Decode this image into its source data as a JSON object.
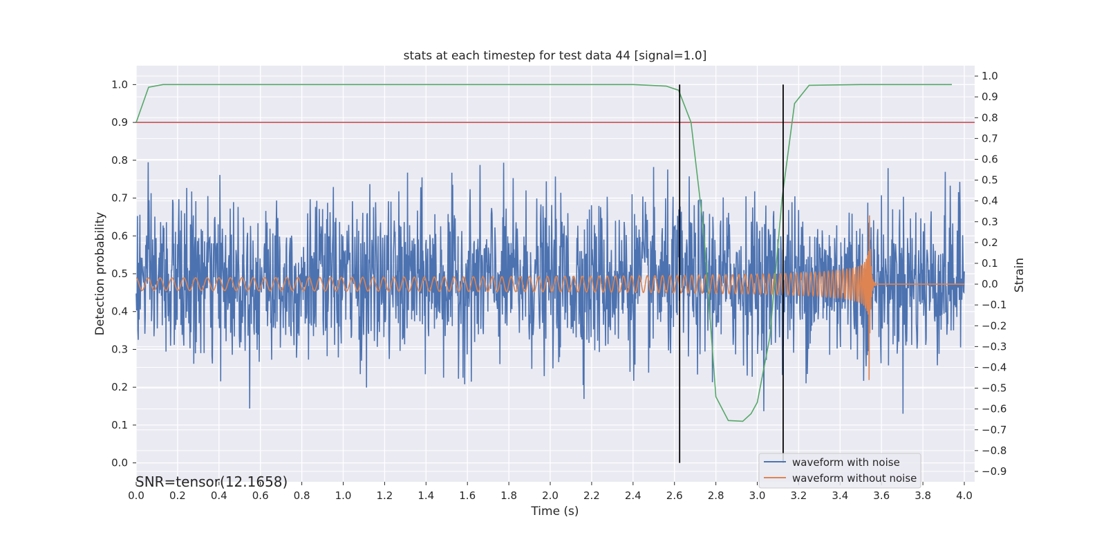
{
  "chart_data": {
    "type": "line",
    "title": "stats at each timestep for test data 44 [signal=1.0]",
    "xlabel": "Time (s)",
    "ylabel_left": "Detection probability",
    "ylabel_right": "Strain",
    "xlim": [
      0.0,
      4.05
    ],
    "ylim_left": [
      -0.05,
      1.05
    ],
    "ylim_right": [
      -0.95,
      1.05
    ],
    "x_ticks": [
      "0.0",
      "0.2",
      "0.4",
      "0.6",
      "0.8",
      "1.0",
      "1.2",
      "1.4",
      "1.6",
      "1.8",
      "2.0",
      "2.2",
      "2.4",
      "2.6",
      "2.8",
      "3.0",
      "3.2",
      "3.4",
      "3.6",
      "3.8",
      "4.0"
    ],
    "y_left_ticks": [
      "0.0",
      "0.1",
      "0.2",
      "0.3",
      "0.4",
      "0.5",
      "0.6",
      "0.7",
      "0.8",
      "0.9",
      "1.0"
    ],
    "y_right_ticks": [
      "−0.9",
      "−0.8",
      "−0.7",
      "−0.6",
      "−0.5",
      "−0.4",
      "−0.3",
      "−0.2",
      "−0.1",
      "0.0",
      "0.1",
      "0.2",
      "0.3",
      "0.4",
      "0.5",
      "0.6",
      "0.7",
      "0.8",
      "0.9",
      "1.0"
    ],
    "grid": true,
    "background": "#eaeaf2",
    "series": [
      {
        "name": "waveform with noise",
        "axis": "right",
        "color": "#4c72b0",
        "note_style": "dense noise, approximately within [-0.9, 1.0]"
      },
      {
        "name": "waveform without noise",
        "axis": "right",
        "color": "#dd8452",
        "note_style": "chirp, amplitude growing to ~0.5 near 3.55 s, then ringdown to 0"
      },
      {
        "axis": "left",
        "color": "#55a868",
        "x": [
          0.0,
          0.06,
          0.13,
          0.5,
          1.0,
          1.5,
          2.0,
          2.4,
          2.56,
          2.62,
          2.68,
          2.74,
          2.8,
          2.86,
          2.93,
          2.97,
          3.0,
          3.06,
          3.12,
          3.18,
          3.25,
          3.5,
          3.94
        ],
        "y": [
          0.9,
          0.993,
          1.0,
          1.0,
          1.0,
          1.0,
          1.0,
          1.0,
          0.996,
          0.985,
          0.9,
          0.62,
          0.175,
          0.112,
          0.11,
          0.13,
          0.16,
          0.33,
          0.7,
          0.95,
          0.998,
          1.0,
          1.0
        ]
      }
    ],
    "threshold": {
      "axis": "left",
      "value": 0.9,
      "color": "#c44e52"
    },
    "event_lines": {
      "x": [
        2.625,
        3.125
      ],
      "y_range": [
        0.0,
        1.0
      ],
      "color": "#000000"
    },
    "legend": {
      "placement": "lower-right"
    },
    "annotation": "SNR=tensor(12.1658)"
  }
}
